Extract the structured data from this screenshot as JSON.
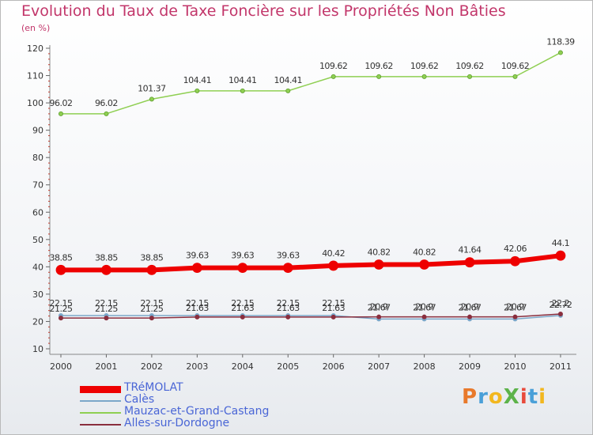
{
  "chart_data": {
    "type": "line",
    "title": "Evolution du Taux de Taxe Foncière sur les Propriétés Non Bâties",
    "subtitle": "(en %)",
    "x": [
      "2000",
      "2001",
      "2002",
      "2003",
      "2004",
      "2005",
      "2006",
      "2007",
      "2008",
      "2009",
      "2010",
      "2011"
    ],
    "ylim": [
      10,
      120
    ],
    "yticks": [
      10,
      20,
      30,
      40,
      50,
      60,
      70,
      80,
      90,
      100,
      110,
      120
    ],
    "grid": false,
    "legend_position": "bottom-left",
    "series": [
      {
        "name": "TRéMOLAT",
        "color": "#ee0000",
        "values": [
          38.85,
          38.85,
          38.85,
          39.63,
          39.63,
          39.63,
          40.42,
          40.82,
          40.82,
          41.64,
          42.06,
          44.1
        ],
        "labels": [
          "38.85",
          "38.85",
          "38.85",
          "39.63",
          "39.63",
          "39.63",
          "40.42",
          "40.82",
          "40.82",
          "41.64",
          "42.06",
          "44.1"
        ]
      },
      {
        "name": "Calès",
        "color": "#7ba7c9",
        "values": [
          22.15,
          22.15,
          22.15,
          22.15,
          22.15,
          22.15,
          22.15,
          20.9,
          20.9,
          20.9,
          20.9,
          22.2
        ],
        "labels": [
          "22.15",
          "22.15",
          "22.15",
          "22.15",
          "22.15",
          "22.15",
          "22.15",
          "20.9",
          "20.9",
          "20.9",
          "20.9",
          "22.2"
        ]
      },
      {
        "name": "Mauzac-et-Grand-Castang",
        "color": "#8fcf52",
        "values": [
          96.02,
          96.02,
          101.37,
          104.41,
          104.41,
          104.41,
          109.62,
          109.62,
          109.62,
          109.62,
          109.62,
          118.39
        ],
        "labels": [
          "96.02",
          "96.02",
          "101.37",
          "104.41",
          "104.41",
          "104.41",
          "109.62",
          "109.62",
          "109.62",
          "109.62",
          "109.62",
          "118.39"
        ]
      },
      {
        "name": "Alles-sur-Dordogne",
        "color": "#8a2e3e",
        "values": [
          21.25,
          21.25,
          21.25,
          21.63,
          21.63,
          21.63,
          21.63,
          21.67,
          21.67,
          21.67,
          21.67,
          22.72
        ],
        "labels": [
          "21.25",
          "21.25",
          "21.25",
          "21.63",
          "21.63",
          "21.63",
          "21.63",
          "21.67",
          "21.67",
          "21.67",
          "21.67",
          "22.72"
        ]
      }
    ]
  },
  "logo": {
    "text": "ProXiti",
    "colors": [
      "#e8792b",
      "#4aa0d8",
      "#f2b71f",
      "#5db34a",
      "#e84b3c",
      "#4aa0d8",
      "#f2b71f"
    ]
  }
}
